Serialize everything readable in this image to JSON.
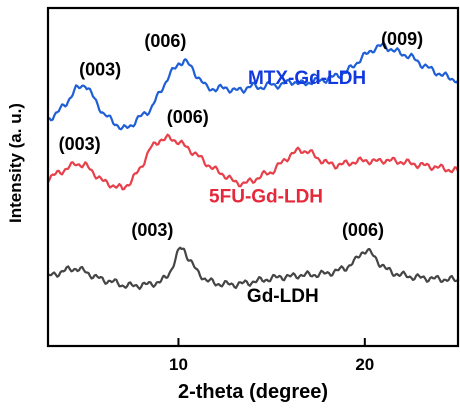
{
  "chart_data": {
    "type": "line",
    "title": "",
    "xlabel": "2-theta (degree)",
    "ylabel": "Intensity (a. u.)",
    "xlim": [
      3,
      25
    ],
    "ylim": [
      0,
      1
    ],
    "x_ticks": [
      10,
      20
    ],
    "y_ticks_shown": false,
    "grid": false,
    "legend": "none",
    "series": [
      {
        "name": "MTX-Gd-LDH",
        "color": "#1f5fd6",
        "label_color": "#1238e0",
        "x": [
          3.0,
          3.5,
          4.0,
          4.5,
          5.0,
          5.5,
          6.0,
          6.5,
          7.0,
          7.5,
          8.0,
          8.5,
          9.0,
          9.5,
          10.0,
          10.3,
          10.6,
          11.0,
          11.5,
          12.0,
          12.5,
          13.0,
          13.5,
          14.0,
          14.5,
          15.0,
          15.5,
          16.0,
          16.5,
          17.0,
          17.5,
          18.0,
          18.5,
          19.0,
          19.5,
          20.0,
          20.5,
          21.0,
          21.5,
          22.0,
          22.5,
          23.0,
          23.5,
          24.0,
          24.5,
          25.0
        ],
        "y": [
          0.67,
          0.69,
          0.72,
          0.76,
          0.775,
          0.73,
          0.685,
          0.665,
          0.64,
          0.655,
          0.68,
          0.7,
          0.75,
          0.8,
          0.835,
          0.845,
          0.83,
          0.8,
          0.765,
          0.76,
          0.765,
          0.755,
          0.76,
          0.77,
          0.765,
          0.775,
          0.77,
          0.785,
          0.775,
          0.78,
          0.785,
          0.79,
          0.8,
          0.81,
          0.835,
          0.86,
          0.88,
          0.89,
          0.875,
          0.865,
          0.855,
          0.835,
          0.82,
          0.805,
          0.795,
          0.785
        ]
      },
      {
        "name": "5FU-Gd-LDH",
        "color": "#e8404a",
        "label_color": "#e5283a",
        "x": [
          3.0,
          3.5,
          4.0,
          4.5,
          5.0,
          5.5,
          6.0,
          6.5,
          7.0,
          7.5,
          8.0,
          8.5,
          9.0,
          9.5,
          10.0,
          10.5,
          11.0,
          11.5,
          12.0,
          12.5,
          13.0,
          13.5,
          14.0,
          14.5,
          15.0,
          15.5,
          16.0,
          16.5,
          17.0,
          17.5,
          18.0,
          18.5,
          19.0,
          19.5,
          20.0,
          20.5,
          21.0,
          21.5,
          22.0,
          22.5,
          23.0,
          23.5,
          24.0,
          24.5,
          25.0
        ],
        "y": [
          0.495,
          0.51,
          0.525,
          0.54,
          0.535,
          0.51,
          0.485,
          0.475,
          0.465,
          0.49,
          0.53,
          0.585,
          0.61,
          0.615,
          0.605,
          0.585,
          0.565,
          0.54,
          0.52,
          0.505,
          0.485,
          0.48,
          0.49,
          0.505,
          0.515,
          0.54,
          0.565,
          0.58,
          0.575,
          0.555,
          0.54,
          0.535,
          0.54,
          0.545,
          0.55,
          0.545,
          0.55,
          0.548,
          0.545,
          0.54,
          0.535,
          0.532,
          0.528,
          0.522,
          0.518
        ]
      },
      {
        "name": "Gd-LDH",
        "color": "#454545",
        "label_color": "#000000",
        "x": [
          3.0,
          3.5,
          4.0,
          4.5,
          5.0,
          5.5,
          6.0,
          6.5,
          7.0,
          7.5,
          8.0,
          8.5,
          9.0,
          9.3,
          9.6,
          9.9,
          10.1,
          10.3,
          10.6,
          11.0,
          11.5,
          12.0,
          12.5,
          13.0,
          13.5,
          14.0,
          14.5,
          15.0,
          15.5,
          16.0,
          16.5,
          17.0,
          17.5,
          18.0,
          18.5,
          19.0,
          19.5,
          19.8,
          20.1,
          20.4,
          20.8,
          21.2,
          21.6,
          22.0,
          22.5,
          23.0,
          23.5,
          24.0,
          24.5,
          25.0
        ],
        "y": [
          0.205,
          0.215,
          0.225,
          0.23,
          0.22,
          0.205,
          0.195,
          0.19,
          0.18,
          0.178,
          0.18,
          0.183,
          0.19,
          0.2,
          0.225,
          0.265,
          0.29,
          0.285,
          0.255,
          0.22,
          0.195,
          0.185,
          0.183,
          0.182,
          0.185,
          0.19,
          0.195,
          0.2,
          0.205,
          0.205,
          0.21,
          0.21,
          0.212,
          0.215,
          0.222,
          0.232,
          0.252,
          0.275,
          0.285,
          0.27,
          0.245,
          0.225,
          0.215,
          0.21,
          0.205,
          0.202,
          0.2,
          0.198,
          0.197,
          0.195
        ]
      }
    ],
    "annotations": [
      {
        "text": "(003)",
        "x": 5.8,
        "y": 0.8
      },
      {
        "text": "(006)",
        "x": 9.3,
        "y": 0.885
      },
      {
        "text": "(009)",
        "x": 22.0,
        "y": 0.89
      },
      {
        "text": "(003)",
        "x": 4.7,
        "y": 0.58
      },
      {
        "text": "(006)",
        "x": 10.5,
        "y": 0.66
      },
      {
        "text": "(003)",
        "x": 8.6,
        "y": 0.325
      },
      {
        "text": "(006)",
        "x": 19.9,
        "y": 0.325
      }
    ],
    "series_labels": [
      {
        "text": "MTX-Gd-LDH",
        "x": 16.9,
        "y": 0.775,
        "color": "#1238e0"
      },
      {
        "text": "5FU-Gd-LDH",
        "x": 14.7,
        "y": 0.425,
        "color": "#e5283a"
      },
      {
        "text": "Gd-LDH",
        "x": 15.6,
        "y": 0.13,
        "color": "#000000"
      }
    ]
  }
}
